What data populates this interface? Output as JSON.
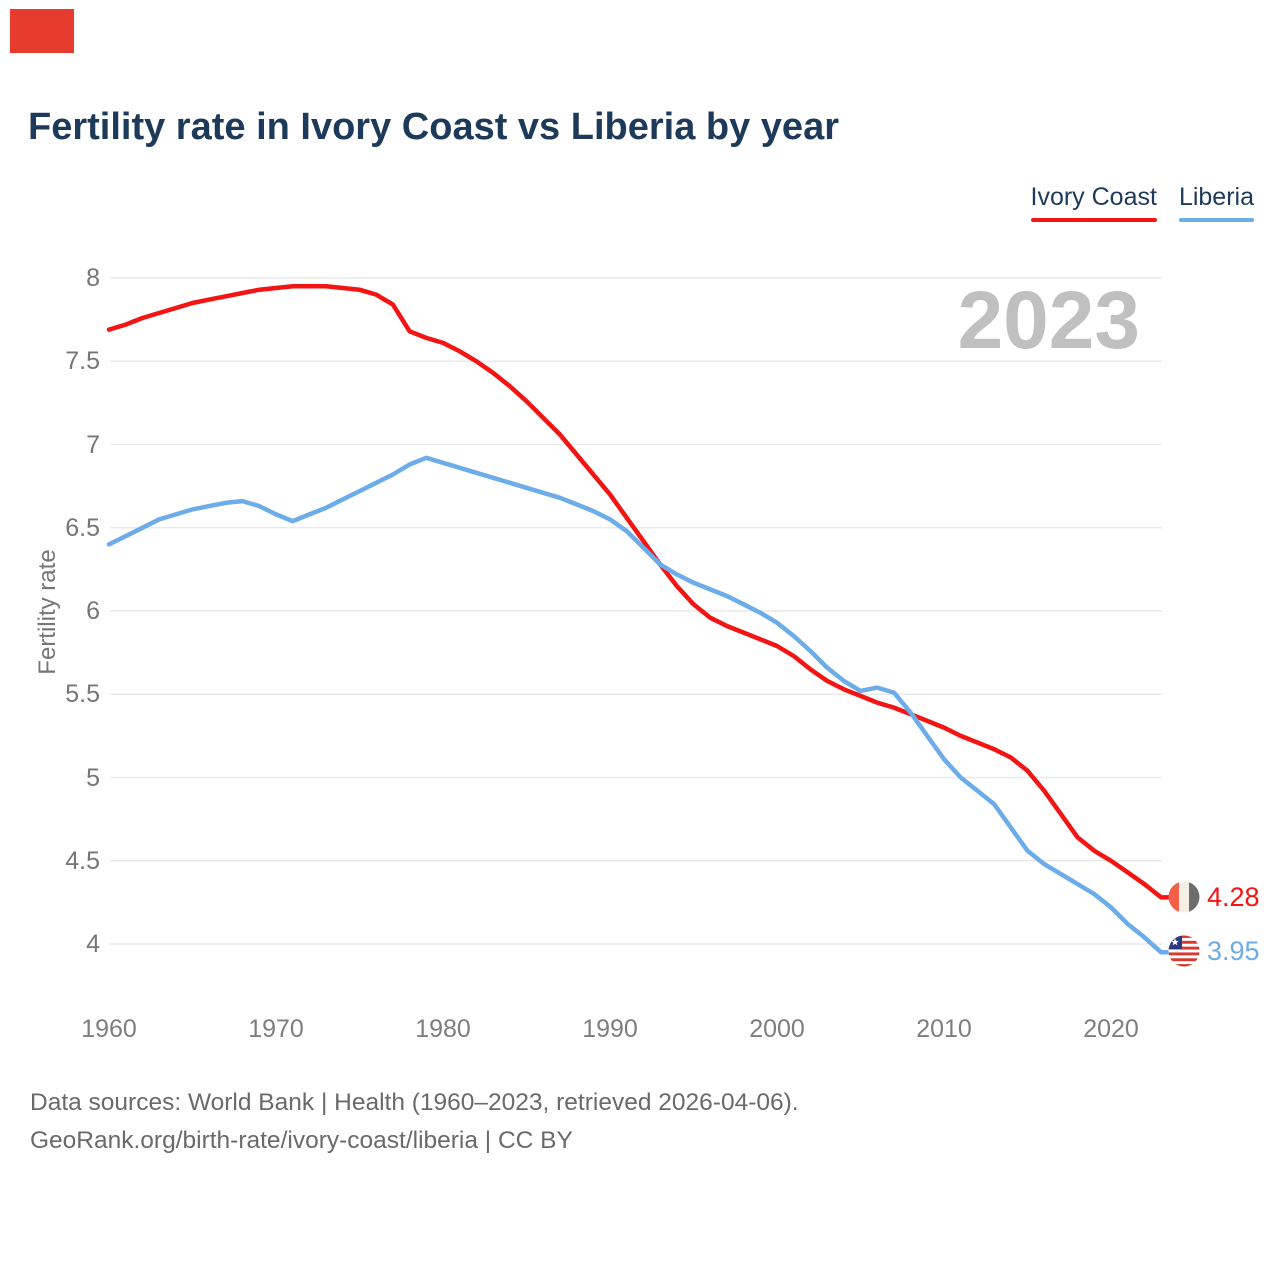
{
  "page": {
    "title": "Fertility rate in Ivory Coast vs Liberia by year",
    "watermark": "2023",
    "footer": {
      "line1": "Data sources: World Bank | Health (1960–2023, retrieved 2026-04-06).",
      "line2": "GeoRank.org/birth-rate/ivory-coast/liberia | CC BY"
    }
  },
  "colors": {
    "title_text": "#1e3a5a",
    "axis_text": "#767676",
    "gridline": "#e9e9e9",
    "watermark": "#c0c0c0",
    "footer_text": "#6a6a6a",
    "logo_red": "#e63b2e",
    "ivory_coast_line": "#f31414",
    "liberia_line": "#6cace9"
  },
  "end_labels": [
    {
      "series": "Ivory Coast",
      "value": "4.28",
      "icon": "ivory-coast-flag"
    },
    {
      "series": "Liberia",
      "value": "3.95",
      "icon": "liberia-flag"
    }
  ],
  "chart_data": {
    "type": "line",
    "title": "Fertility rate in Ivory Coast vs Liberia by year",
    "xlabel": "",
    "ylabel": "Fertility rate",
    "xlim": [
      1960,
      2023
    ],
    "ylim": [
      4,
      8
    ],
    "grid": "horizontal",
    "legend_position": "top-right",
    "ytick_labels": [
      "8",
      "7.5",
      "7",
      "6.5",
      "6",
      "5.5",
      "5",
      "4.5",
      "4"
    ],
    "xtick_labels": [
      "1960",
      "1970",
      "1980",
      "1990",
      "2000",
      "2010",
      "2020"
    ],
    "x": [
      1960,
      1961,
      1962,
      1963,
      1964,
      1965,
      1966,
      1967,
      1968,
      1969,
      1970,
      1971,
      1972,
      1973,
      1974,
      1975,
      1976,
      1977,
      1978,
      1979,
      1980,
      1981,
      1982,
      1983,
      1984,
      1985,
      1986,
      1987,
      1988,
      1989,
      1990,
      1991,
      1992,
      1993,
      1994,
      1995,
      1996,
      1997,
      1998,
      1999,
      2000,
      2001,
      2002,
      2003,
      2004,
      2005,
      2006,
      2007,
      2008,
      2009,
      2010,
      2011,
      2012,
      2013,
      2014,
      2015,
      2016,
      2017,
      2018,
      2019,
      2020,
      2021,
      2022,
      2023
    ],
    "series": [
      {
        "name": "Ivory Coast",
        "color": "#f31414",
        "values": [
          7.69,
          7.72,
          7.76,
          7.79,
          7.82,
          7.85,
          7.87,
          7.89,
          7.91,
          7.93,
          7.94,
          7.95,
          7.95,
          7.95,
          7.94,
          7.93,
          7.9,
          7.84,
          7.68,
          7.64,
          7.61,
          7.56,
          7.5,
          7.43,
          7.35,
          7.26,
          7.16,
          7.06,
          6.94,
          6.82,
          6.7,
          6.56,
          6.42,
          6.28,
          6.15,
          6.04,
          5.96,
          5.91,
          5.87,
          5.83,
          5.79,
          5.73,
          5.65,
          5.58,
          5.53,
          5.49,
          5.45,
          5.42,
          5.38,
          5.34,
          5.3,
          5.25,
          5.21,
          5.17,
          5.12,
          5.04,
          4.92,
          4.78,
          4.64,
          4.56,
          4.5,
          4.43,
          4.36,
          4.28
        ]
      },
      {
        "name": "Liberia",
        "color": "#6cace9",
        "values": [
          6.4,
          6.45,
          6.5,
          6.55,
          6.58,
          6.61,
          6.63,
          6.65,
          6.66,
          6.63,
          6.58,
          6.54,
          6.58,
          6.62,
          6.67,
          6.72,
          6.77,
          6.82,
          6.88,
          6.92,
          6.89,
          6.86,
          6.83,
          6.8,
          6.77,
          6.74,
          6.71,
          6.68,
          6.64,
          6.6,
          6.55,
          6.48,
          6.38,
          6.28,
          6.22,
          6.17,
          6.13,
          6.09,
          6.04,
          5.99,
          5.93,
          5.85,
          5.76,
          5.66,
          5.58,
          5.52,
          5.54,
          5.51,
          5.39,
          5.25,
          5.11,
          5.0,
          4.92,
          4.84,
          4.7,
          4.56,
          4.48,
          4.42,
          4.36,
          4.3,
          4.22,
          4.12,
          4.04,
          3.95
        ]
      }
    ]
  }
}
